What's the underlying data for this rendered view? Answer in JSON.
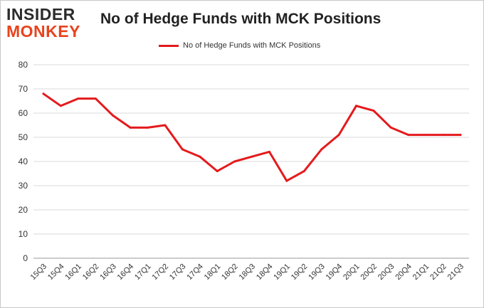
{
  "logo": {
    "line1": "INSIDER",
    "line2": "MONKEY"
  },
  "chart_data": {
    "type": "line",
    "title": "No of Hedge Funds with MCK Positions",
    "xlabel": "",
    "ylabel": "",
    "ylim": [
      0,
      80
    ],
    "yticks": [
      0,
      10,
      20,
      30,
      40,
      50,
      60,
      70,
      80
    ],
    "grid": true,
    "legend_position": "top",
    "categories": [
      "15Q3",
      "15Q4",
      "16Q1",
      "16Q2",
      "16Q3",
      "16Q4",
      "17Q1",
      "17Q2",
      "17Q3",
      "17Q4",
      "18Q1",
      "18Q2",
      "18Q3",
      "18Q4",
      "19Q1",
      "19Q2",
      "19Q3",
      "19Q4",
      "20Q1",
      "20Q2",
      "20Q3",
      "20Q4",
      "21Q1",
      "21Q2",
      "21Q3"
    ],
    "series": [
      {
        "name": "No of Hedge Funds with MCK Positions",
        "color": "#e41a1c",
        "values": [
          68,
          63,
          66,
          66,
          59,
          54,
          54,
          55,
          45,
          42,
          36,
          40,
          42,
          44,
          32,
          36,
          45,
          51,
          63,
          61,
          54,
          51,
          51,
          51,
          51
        ]
      }
    ]
  }
}
